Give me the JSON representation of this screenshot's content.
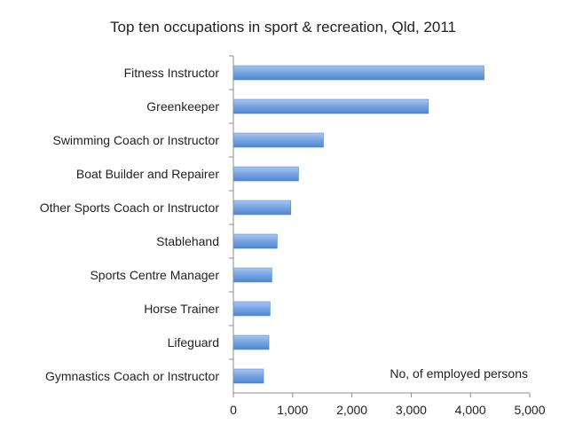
{
  "chart_data": {
    "type": "bar",
    "orientation": "horizontal",
    "title": "Top ten occupations in sport & recreation, Qld, 2011",
    "annotation": "No, of employed persons",
    "categories": [
      "Fitness Instructor",
      "Greenkeeper",
      "Swimming Coach or Instructor",
      "Boat Builder and Repairer",
      "Other Sports Coach or Instructor",
      "Stablehand",
      "Sports Centre Manager",
      "Horse Trainer",
      "Lifeguard",
      "Gymnastics Coach or Instructor"
    ],
    "values": [
      4230,
      3290,
      1520,
      1100,
      970,
      740,
      650,
      620,
      600,
      510
    ],
    "xlim": [
      0,
      5000
    ],
    "xticks": [
      0,
      1000,
      2000,
      3000,
      4000,
      5000
    ],
    "xtick_labels": [
      "0",
      "1,000",
      "2,000",
      "3,000",
      "4,000",
      "5,000"
    ],
    "grid": false,
    "bar_color": "#6f9fde"
  }
}
